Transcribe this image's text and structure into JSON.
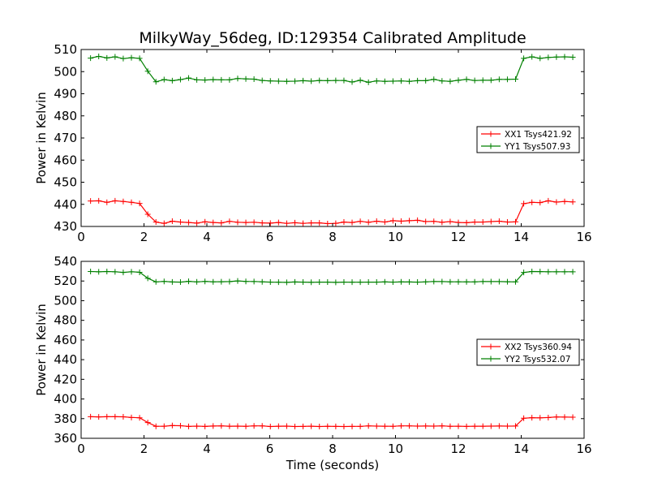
{
  "chart_data": {
    "title": "MilkyWay_56deg, ID:129354 Calibrated Amplitude",
    "xlabel": "Time (seconds)",
    "colors": {
      "xx": "#ff0000",
      "yy": "#008000"
    },
    "panels": [
      {
        "type": "line",
        "ylabel": "Power in Kelvin",
        "xlim": [
          0,
          16
        ],
        "ylim": [
          430,
          510
        ],
        "xticks": [
          0,
          2,
          4,
          6,
          8,
          10,
          12,
          14,
          16
        ],
        "yticks": [
          430,
          440,
          450,
          460,
          470,
          480,
          490,
          500,
          510
        ],
        "legend_location": "center-right",
        "x": [
          0.3,
          0.56,
          0.82,
          1.08,
          1.34,
          1.6,
          1.86,
          2.12,
          2.38,
          2.64,
          2.9,
          3.16,
          3.42,
          3.68,
          3.94,
          4.2,
          4.46,
          4.72,
          4.98,
          5.24,
          5.5,
          5.76,
          6.02,
          6.28,
          6.54,
          6.8,
          7.06,
          7.32,
          7.58,
          7.84,
          8.1,
          8.36,
          8.62,
          8.88,
          9.14,
          9.4,
          9.66,
          9.92,
          10.18,
          10.44,
          10.7,
          10.96,
          11.22,
          11.48,
          11.74,
          12.0,
          12.26,
          12.52,
          12.78,
          13.04,
          13.3,
          13.56,
          13.82,
          14.08,
          14.34,
          14.6,
          14.86,
          15.12,
          15.38,
          15.64
        ],
        "series": [
          {
            "name": "XX1 Tsys421.92",
            "color_key": "xx",
            "values": [
              441.5,
              441.6,
              440.9,
              441.6,
              441.3,
              440.9,
              440.4,
              435.5,
              432.0,
              431.4,
              432.4,
              432.0,
              431.8,
              431.5,
              432.1,
              431.8,
              431.6,
              432.3,
              431.9,
              431.8,
              431.9,
              431.6,
              431.5,
              431.8,
              431.4,
              431.7,
              431.4,
              431.6,
              431.6,
              431.3,
              431.4,
              432.0,
              431.8,
              432.3,
              431.9,
              432.4,
              432.0,
              432.6,
              432.4,
              432.6,
              432.8,
              432.2,
              432.3,
              431.9,
              432.2,
              431.8,
              431.7,
              432.0,
              432.0,
              432.2,
              432.4,
              432.0,
              432.1,
              440.3,
              440.9,
              440.8,
              441.6,
              441.0,
              441.3,
              441.1
            ]
          },
          {
            "name": "YY1 Tsys507.93",
            "color_key": "yy",
            "values": [
              506.1,
              506.9,
              506.2,
              506.7,
              505.9,
              506.3,
              506.0,
              500.2,
              495.4,
              496.4,
              495.9,
              496.4,
              497.1,
              496.3,
              496.2,
              496.4,
              496.3,
              496.3,
              496.9,
              496.7,
              496.6,
              496.0,
              495.8,
              495.7,
              495.6,
              495.7,
              495.9,
              495.7,
              496.0,
              495.9,
              496.0,
              496.0,
              495.3,
              496.1,
              495.2,
              495.8,
              495.6,
              495.7,
              495.8,
              495.6,
              495.9,
              495.9,
              496.5,
              495.8,
              495.6,
              496.1,
              496.5,
              496.0,
              496.1,
              496.1,
              496.5,
              496.5,
              496.6,
              506.0,
              506.7,
              506.0,
              506.4,
              506.6,
              506.7,
              506.5
            ]
          }
        ]
      },
      {
        "type": "line",
        "ylabel": "Power in Kelvin",
        "xlim": [
          0,
          16
        ],
        "ylim": [
          360,
          540
        ],
        "xticks": [
          0,
          2,
          4,
          6,
          8,
          10,
          12,
          14,
          16
        ],
        "yticks": [
          360,
          380,
          400,
          420,
          440,
          460,
          480,
          500,
          520,
          540
        ],
        "legend_location": "center-right",
        "x": [
          0.3,
          0.56,
          0.82,
          1.08,
          1.34,
          1.6,
          1.86,
          2.12,
          2.38,
          2.64,
          2.9,
          3.16,
          3.42,
          3.68,
          3.94,
          4.2,
          4.46,
          4.72,
          4.98,
          5.24,
          5.5,
          5.76,
          6.02,
          6.28,
          6.54,
          6.8,
          7.06,
          7.32,
          7.58,
          7.84,
          8.1,
          8.36,
          8.62,
          8.88,
          9.14,
          9.4,
          9.66,
          9.92,
          10.18,
          10.44,
          10.7,
          10.96,
          11.22,
          11.48,
          11.74,
          12.0,
          12.26,
          12.52,
          12.78,
          13.04,
          13.3,
          13.56,
          13.82,
          14.08,
          14.34,
          14.6,
          14.86,
          15.12,
          15.38,
          15.64
        ],
        "series": [
          {
            "name": "XX2 Tsys360.94",
            "color_key": "xx",
            "values": [
              382.0,
              381.8,
              382.0,
              382.0,
              381.9,
              381.2,
              380.9,
              376.0,
              372.2,
              372.3,
              373.0,
              372.8,
              372.1,
              372.4,
              372.1,
              372.5,
              372.6,
              372.3,
              372.4,
              372.2,
              372.6,
              372.6,
              372.0,
              372.3,
              372.4,
              372.0,
              372.1,
              372.3,
              372.0,
              372.2,
              372.1,
              372.0,
              372.1,
              372.1,
              372.6,
              372.4,
              372.3,
              372.2,
              372.6,
              372.6,
              372.4,
              372.5,
              372.4,
              372.6,
              372.2,
              372.3,
              372.1,
              372.3,
              372.3,
              372.4,
              372.5,
              372.4,
              372.5,
              380.4,
              381.0,
              380.8,
              381.1,
              381.7,
              381.6,
              381.5
            ]
          },
          {
            "name": "YY2 Tsys532.07",
            "color_key": "yy",
            "values": [
              529.7,
              529.4,
              529.7,
              529.4,
              528.8,
              529.4,
              528.9,
              522.8,
              519.1,
              519.6,
              519.0,
              518.9,
              519.7,
              519.1,
              519.6,
              519.2,
              519.3,
              519.4,
              520.1,
              519.6,
              519.5,
              519.2,
              518.9,
              518.8,
              518.6,
              519.0,
              518.9,
              518.7,
              518.9,
              518.9,
              518.6,
              518.9,
              518.8,
              518.8,
              518.9,
              518.9,
              519.1,
              518.9,
              519.1,
              519.0,
              518.9,
              519.1,
              519.5,
              519.4,
              519.2,
              519.2,
              519.1,
              519.1,
              519.5,
              519.4,
              519.4,
              519.3,
              519.1,
              528.7,
              529.7,
              529.6,
              529.4,
              529.4,
              529.4,
              529.4
            ]
          }
        ]
      }
    ]
  }
}
